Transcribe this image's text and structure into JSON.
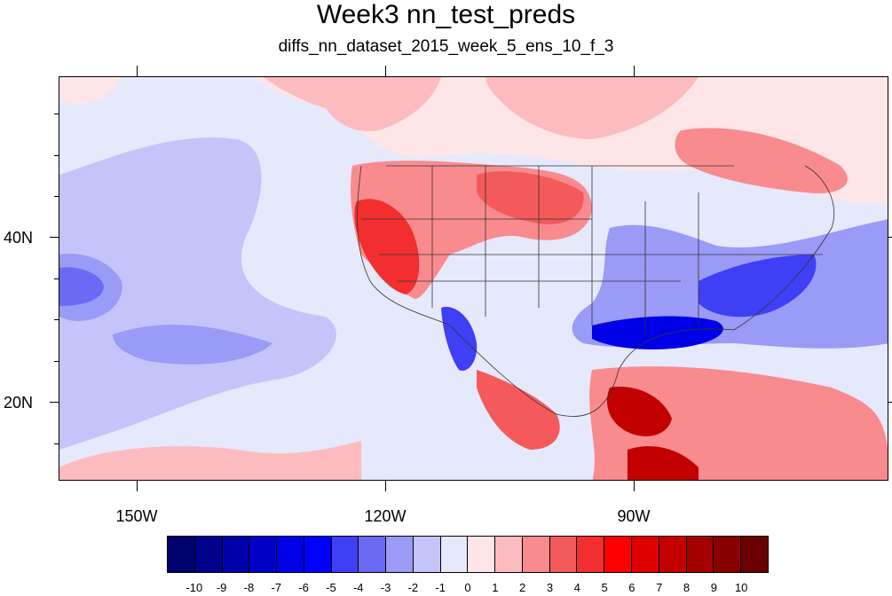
{
  "title": "Week3 nn_test_preds",
  "subtitle": "diffs_nn_dataset_2015_week_5_ens_10_f_3",
  "lat_labels": [
    "40N",
    "20N"
  ],
  "lon_labels": [
    "150W",
    "120W",
    "90W"
  ],
  "colorbar": {
    "labels": [
      "-10",
      "-9",
      "-8",
      "-7",
      "-6",
      "-5",
      "-4",
      "-3",
      "-2",
      "-1",
      "0",
      "1",
      "2",
      "3",
      "4",
      "5",
      "6",
      "7",
      "8",
      "9",
      "10"
    ],
    "colors": [
      "#00006e",
      "#00008c",
      "#0000aa",
      "#0000c8",
      "#0000e6",
      "#0000ff",
      "#3f3ff5",
      "#6a6af5",
      "#9a9af7",
      "#c4c4fa",
      "#e6e8fb",
      "#fde5e8",
      "#fcbcbf",
      "#f98b8e",
      "#f45a5c",
      "#f22e2e",
      "#ff0000",
      "#e00000",
      "#c20000",
      "#a40000",
      "#880000",
      "#6a0000"
    ]
  }
}
